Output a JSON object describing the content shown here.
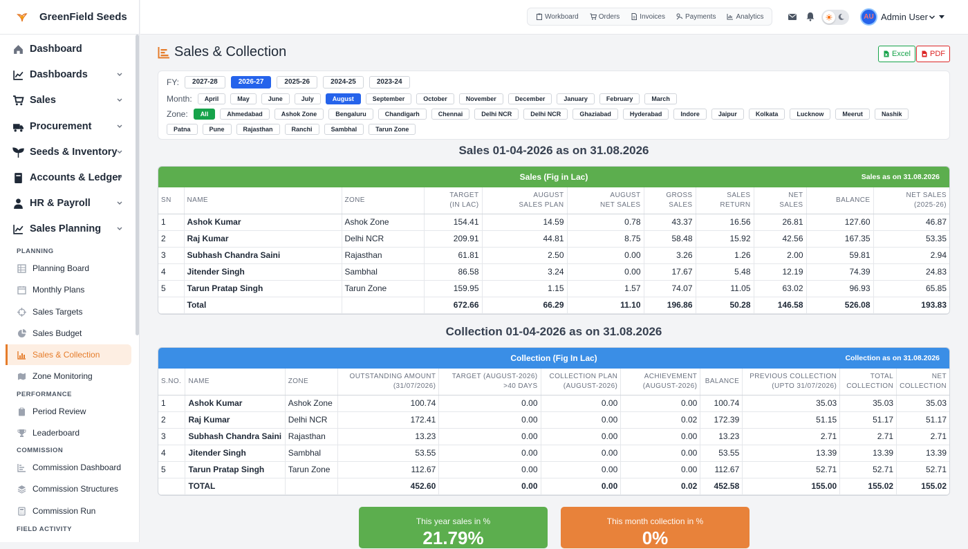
{
  "brand": {
    "name": "GreenField Seeds"
  },
  "sidebar": {
    "items": [
      {
        "label": "Dashboard"
      },
      {
        "label": "Dashboards"
      },
      {
        "label": "Sales"
      },
      {
        "label": "Procurement"
      },
      {
        "label": "Seeds & Inventory"
      },
      {
        "label": "Accounts & Ledger"
      },
      {
        "label": "HR & Payroll"
      },
      {
        "label": "Sales Planning"
      }
    ],
    "sections": {
      "planning": "PLANNING",
      "performance": "PERFORMANCE",
      "commission": "COMMISSION",
      "field": "FIELD ACTIVITY"
    },
    "planning_items": [
      "Planning Board",
      "Monthly Plans",
      "Sales Targets",
      "Sales Budget",
      "Sales & Collection",
      "Zone Monitoring"
    ],
    "performance_items": [
      "Period Review",
      "Leaderboard"
    ],
    "commission_items": [
      "Commission Dashboard",
      "Commission Structures",
      "Commission Run"
    ]
  },
  "topbar": {
    "quick": [
      "Workboard",
      "Orders",
      "Invoices",
      "Payments",
      "Analytics"
    ],
    "user": {
      "initials": "AU",
      "name": "Admin User"
    }
  },
  "page": {
    "title": "Sales & Collection",
    "excel": "Excel",
    "pdf": "PDF"
  },
  "filters": {
    "fy_label": "FY:",
    "fy": [
      "2027-28",
      "2026-27",
      "2025-26",
      "2024-25",
      "2023-24"
    ],
    "fy_selected": "2026-27",
    "month_label": "Month:",
    "months": [
      "April",
      "May",
      "June",
      "July",
      "August",
      "September",
      "October",
      "November",
      "December",
      "January",
      "February",
      "March"
    ],
    "month_selected": "August",
    "zone_label": "Zone:",
    "zones": [
      "All",
      "Ahmedabad",
      "Ashok Zone",
      "Bengaluru",
      "Chandigarh",
      "Chennai",
      "Delhi NCR",
      "Delhi NCR",
      "Ghaziabad",
      "Hyderabad",
      "Indore",
      "Jaipur",
      "Kolkata",
      "Lucknow",
      "Meerut",
      "Nashik",
      "Patna",
      "Pune",
      "Rajasthan",
      "Ranchi",
      "Sambhal",
      "Tarun Zone"
    ],
    "zone_selected": "All"
  },
  "sales": {
    "title": "Sales 01-04-2026 as on 31.08.2026",
    "card_title": "Sales (Fig in Lac)",
    "card_right": "Sales as on 31.08.2026",
    "headers": [
      [
        "SN"
      ],
      [
        "NAME"
      ],
      [
        "ZONE"
      ],
      [
        "TARGET",
        "(IN LAC)"
      ],
      [
        "AUGUST",
        "SALES PLAN"
      ],
      [
        "AUGUST",
        "NET SALES"
      ],
      [
        "GROSS",
        "SALES"
      ],
      [
        "SALES",
        "RETURN"
      ],
      [
        "NET",
        "SALES"
      ],
      [
        "BALANCE"
      ],
      [
        "NET SALES",
        "(2025-26)"
      ]
    ],
    "rows": [
      [
        "1",
        "Ashok Kumar",
        "Ashok Zone",
        "154.41",
        "14.59",
        "0.78",
        "43.37",
        "16.56",
        "26.81",
        "127.60",
        "46.87"
      ],
      [
        "2",
        "Raj Kumar",
        "Delhi NCR",
        "209.91",
        "44.81",
        "8.75",
        "58.48",
        "15.92",
        "42.56",
        "167.35",
        "53.35"
      ],
      [
        "3",
        "Subhash Chandra Saini",
        "Rajasthan",
        "61.81",
        "2.50",
        "0.00",
        "3.26",
        "1.26",
        "2.00",
        "59.81",
        "2.94"
      ],
      [
        "4",
        "Jitender Singh",
        "Sambhal",
        "86.58",
        "3.24",
        "0.00",
        "17.67",
        "5.48",
        "12.19",
        "74.39",
        "24.83"
      ],
      [
        "5",
        "Tarun Pratap Singh",
        "Tarun Zone",
        "159.95",
        "1.15",
        "1.57",
        "74.07",
        "11.05",
        "63.02",
        "96.93",
        "65.85"
      ]
    ],
    "total": [
      "",
      "Total",
      "",
      "672.66",
      "66.29",
      "11.10",
      "196.86",
      "50.28",
      "146.58",
      "526.08",
      "193.83"
    ]
  },
  "collection": {
    "title": "Collection 01-04-2026 as on 31.08.2026",
    "card_title": "Collection (Fig In Lac)",
    "card_right": "Collection as on 31.08.2026",
    "headers": [
      [
        "S.NO."
      ],
      [
        "NAME"
      ],
      [
        "ZONE"
      ],
      [
        "OUTSTANDING AMOUNT",
        "(31/07/2026)"
      ],
      [
        "TARGET (AUGUST-2026)",
        ">40 DAYS"
      ],
      [
        "COLLECTION PLAN",
        "(AUGUST-2026)"
      ],
      [
        "ACHIEVEMENT",
        "(AUGUST-2026)"
      ],
      [
        "BALANCE"
      ],
      [
        "PREVIOUS COLLECTION",
        "(UPTO 31/07/2026)"
      ],
      [
        "TOTAL",
        "COLLECTION"
      ],
      [
        "NET",
        "COLLECTION"
      ]
    ],
    "rows": [
      [
        "1",
        "Ashok Kumar",
        "Ashok Zone",
        "100.74",
        "0.00",
        "0.00",
        "0.00",
        "100.74",
        "35.03",
        "35.03",
        "35.03"
      ],
      [
        "2",
        "Raj Kumar",
        "Delhi NCR",
        "172.41",
        "0.00",
        "0.00",
        "0.02",
        "172.39",
        "51.15",
        "51.17",
        "51.17"
      ],
      [
        "3",
        "Subhash Chandra Saini",
        "Rajasthan",
        "13.23",
        "0.00",
        "0.00",
        "0.00",
        "13.23",
        "2.71",
        "2.71",
        "2.71"
      ],
      [
        "4",
        "Jitender Singh",
        "Sambhal",
        "53.55",
        "0.00",
        "0.00",
        "0.00",
        "53.55",
        "13.39",
        "13.39",
        "13.39"
      ],
      [
        "5",
        "Tarun Pratap Singh",
        "Tarun Zone",
        "112.67",
        "0.00",
        "0.00",
        "0.00",
        "112.67",
        "52.71",
        "52.71",
        "52.71"
      ]
    ],
    "total": [
      "",
      "TOTAL",
      "",
      "452.60",
      "0.00",
      "0.00",
      "0.02",
      "452.58",
      "155.00",
      "155.02",
      "155.02"
    ]
  },
  "stats": [
    {
      "label": "This year sales in %",
      "value": "21.79%",
      "color": "#5cae4e"
    },
    {
      "label": "This month collection in %",
      "value": "0%",
      "color": "#e8823a"
    }
  ]
}
